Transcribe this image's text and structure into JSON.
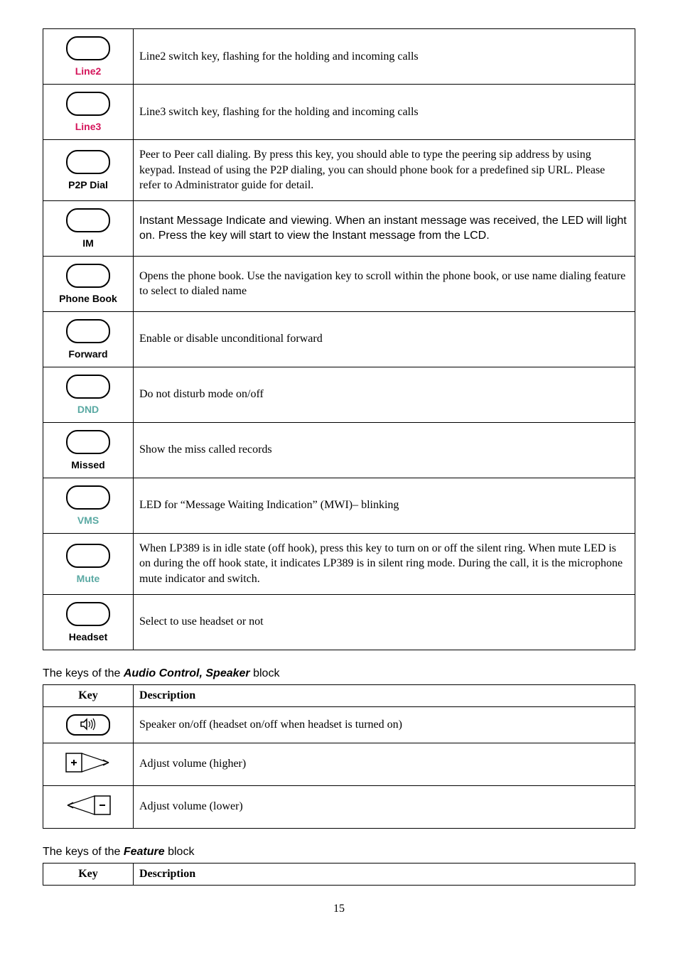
{
  "table1": {
    "rows": [
      {
        "label": "Line2",
        "label_color": "red",
        "desc": "Line2 switch key, flashing for the holding and incoming calls",
        "sans": false
      },
      {
        "label": "Line3",
        "label_color": "red",
        "desc": "Line3 switch key, flashing for the holding and incoming calls",
        "sans": false
      },
      {
        "label": "P2P Dial",
        "label_color": "",
        "desc": "Peer to Peer call dialing. By press this key, you should able to type the peering sip address by using keypad. Instead of using the P2P dialing, you can should phone book for a predefined sip URL. Please refer to Administrator guide for detail.",
        "sans": false
      },
      {
        "label": "IM",
        "label_color": "",
        "desc": "Instant Message Indicate and viewing. When an instant message was received, the LED will light on. Press the key will start to view the Instant message from the LCD.",
        "sans": true
      },
      {
        "label": "Phone Book",
        "label_color": "",
        "desc": "Opens the phone book. Use the navigation key to scroll within the phone book, or use name dialing feature to select to dialed name",
        "sans": false
      },
      {
        "label": "Forward",
        "label_color": "",
        "desc": "Enable or disable unconditional forward",
        "sans": false
      },
      {
        "label": "DND",
        "label_color": "teal",
        "desc": "Do not disturb mode on/off",
        "sans": false
      },
      {
        "label": "Missed",
        "label_color": "",
        "desc": "Show the miss called records",
        "sans": false
      },
      {
        "label": "VMS",
        "label_color": "teal",
        "desc": "LED for “Message Waiting Indication” (MWI)– blinking",
        "sans": false
      },
      {
        "label": "Mute",
        "label_color": "teal",
        "desc": "When LP389 is in idle state (off hook), press this key to turn on or off the silent ring. When mute LED is on during the off hook state, it indicates LP389 is in silent ring mode. During the call, it is the microphone mute indicator and switch.",
        "sans": false
      },
      {
        "label": "Headset",
        "label_color": "",
        "desc": "Select to use headset or not",
        "sans": false
      }
    ]
  },
  "section_audio": {
    "title_prefix": "The keys of the ",
    "title_bold": "Audio Control, Speaker",
    "title_suffix": " block",
    "head_key": "Key",
    "head_desc": "Description",
    "row_speaker": "Speaker on/off (headset on/off when headset is turned on)",
    "row_volup": "Adjust volume (higher)",
    "row_voldown": "Adjust volume (lower)"
  },
  "section_feature": {
    "title_prefix": "The keys of the ",
    "title_bold": "Feature",
    "title_suffix": " block",
    "head_key": "Key",
    "head_desc": "Description"
  },
  "page_number": "15"
}
